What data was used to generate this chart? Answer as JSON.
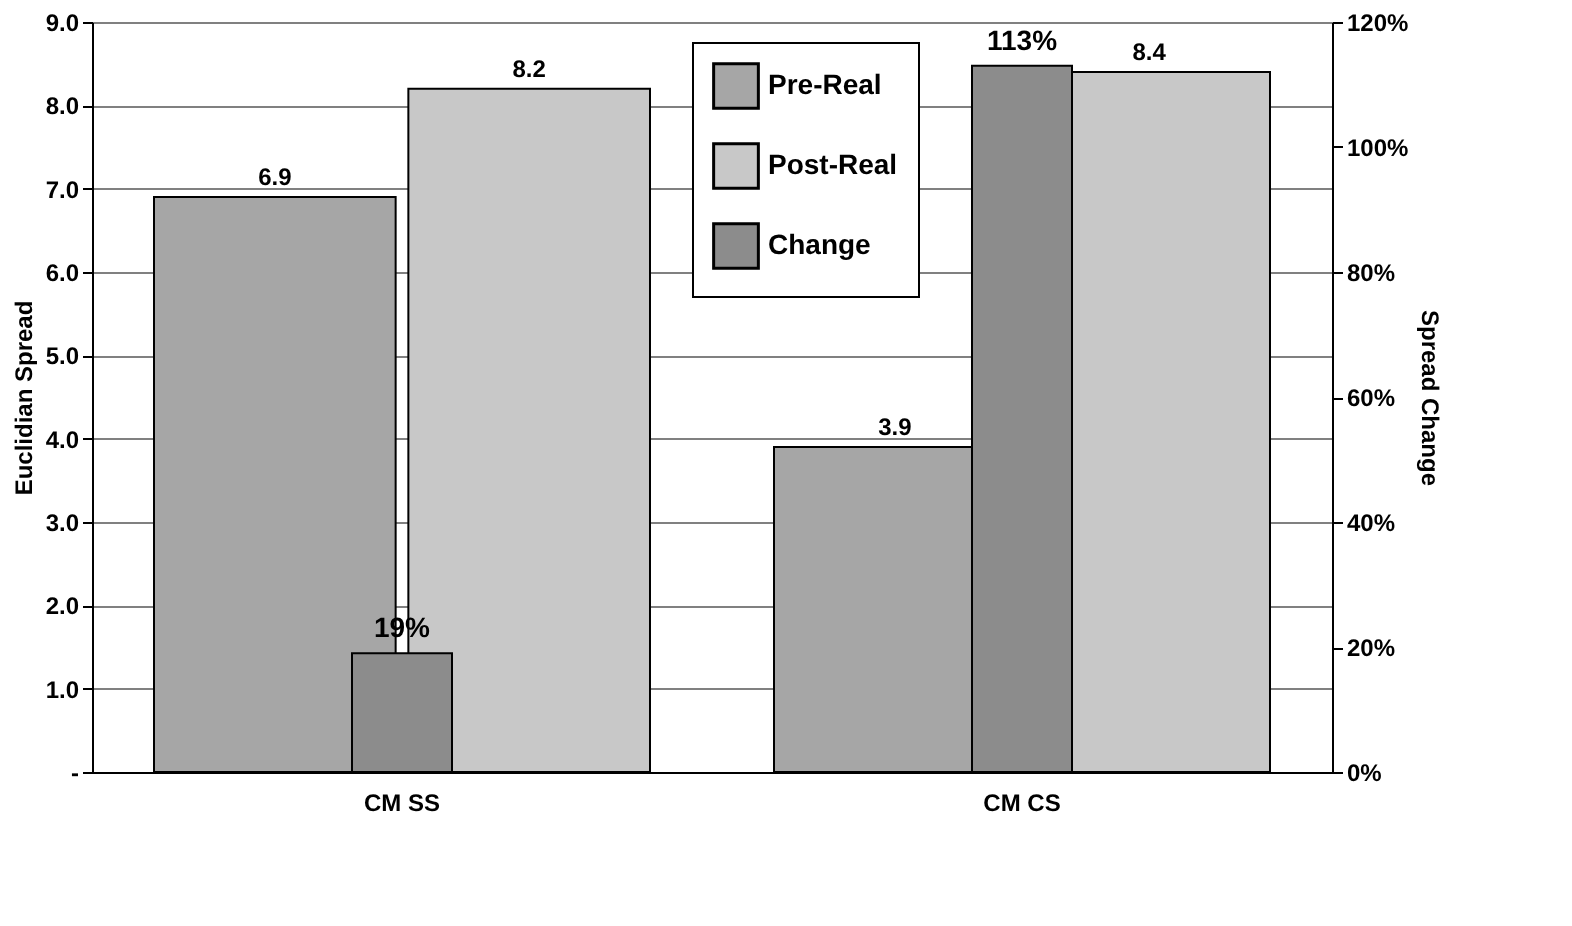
{
  "chart_data": {
    "type": "bar",
    "categories": [
      "CM SS",
      "CM CS"
    ],
    "ylabel": "Euclidian Spread",
    "y2label": "Spread Change",
    "ylim": [
      0,
      9
    ],
    "yticks": [
      {
        "value": 0,
        "label": "-"
      },
      {
        "value": 1,
        "label": "1.0"
      },
      {
        "value": 2,
        "label": "2.0"
      },
      {
        "value": 3,
        "label": "3.0"
      },
      {
        "value": 4,
        "label": "4.0"
      },
      {
        "value": 5,
        "label": "5.0"
      },
      {
        "value": 6,
        "label": "6.0"
      },
      {
        "value": 7,
        "label": "7.0"
      },
      {
        "value": 8,
        "label": "8.0"
      },
      {
        "value": 9,
        "label": "9.0"
      }
    ],
    "y2lim": [
      0,
      120
    ],
    "y2ticks": [
      {
        "value": 0,
        "label": "0%"
      },
      {
        "value": 20,
        "label": "20%"
      },
      {
        "value": 40,
        "label": "40%"
      },
      {
        "value": 60,
        "label": "60%"
      },
      {
        "value": 80,
        "label": "80%"
      },
      {
        "value": 100,
        "label": "100%"
      },
      {
        "value": 120,
        "label": "120%"
      }
    ],
    "series": [
      {
        "name": "Pre-Real",
        "color": "#a6a6a6",
        "values": [
          6.9,
          3.9
        ],
        "value_labels": [
          "6.9",
          "3.9"
        ]
      },
      {
        "name": "Post-Real",
        "color": "#c8c8c8",
        "values": [
          8.2,
          8.4
        ],
        "value_labels": [
          "8.2",
          "8.4"
        ]
      },
      {
        "name": "Change",
        "color": "#8c8c8c",
        "axis": "y2",
        "values": [
          19,
          113
        ],
        "value_labels": [
          "19%",
          "113%"
        ]
      }
    ],
    "grid": "y",
    "legend": "top"
  }
}
